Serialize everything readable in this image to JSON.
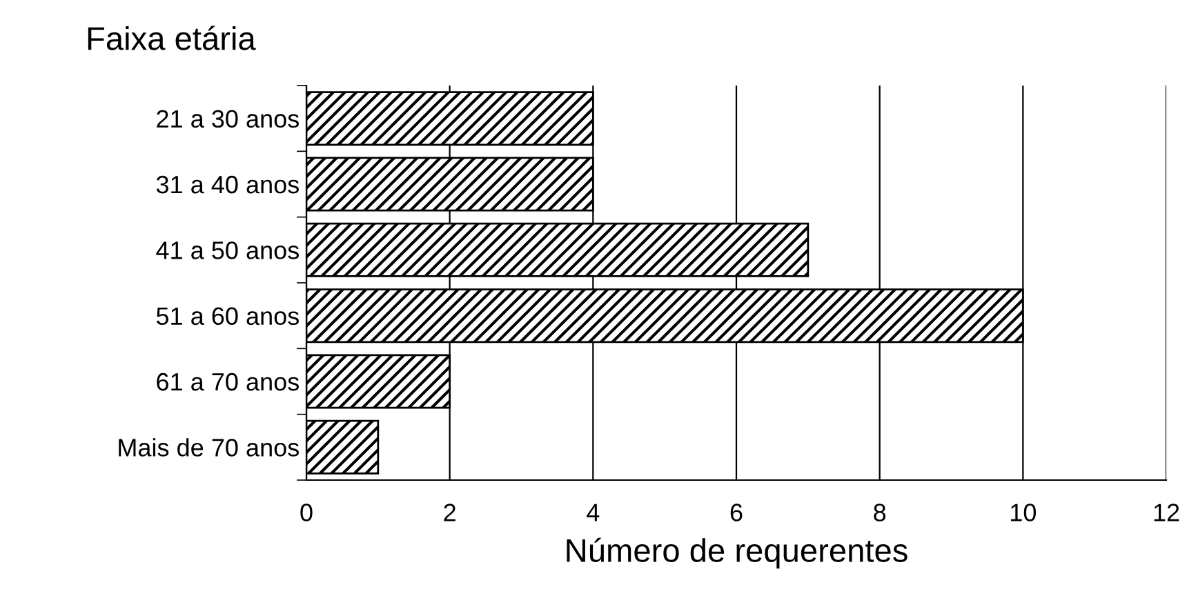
{
  "chart_data": {
    "type": "bar",
    "orientation": "horizontal",
    "ylabel": "Faixa etária",
    "xlabel": "Número de requerentes",
    "categories": [
      "21 a 30 anos",
      "31 a 40 anos",
      "41 a 50 anos",
      "51 a 60 anos",
      "61 a 70 anos",
      "Mais de 70 anos"
    ],
    "values": [
      4,
      4,
      7,
      10,
      2,
      1
    ],
    "color": "#000000",
    "xlim": [
      0,
      12
    ],
    "xticks": [
      0,
      2,
      4,
      6,
      8,
      10,
      12
    ],
    "grid": "x",
    "legend": false
  }
}
